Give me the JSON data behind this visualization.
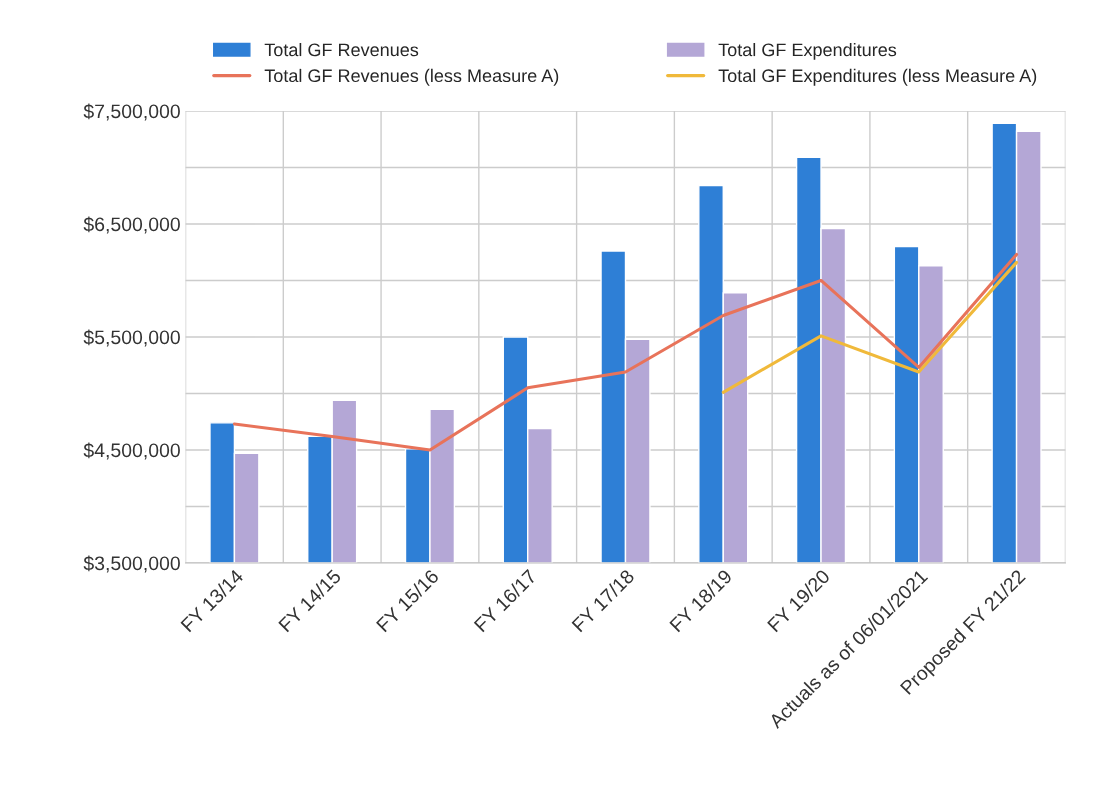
{
  "chart_data": {
    "type": "bar",
    "categories": [
      "FY 13/14",
      "FY 14/15",
      "FY 15/16",
      "FY 16/17",
      "FY 17/18",
      "FY 18/19",
      "FY 19/20",
      "Actuals as of 06/01/2021",
      "Proposed FY 21/22"
    ],
    "series": [
      {
        "name": "Total GF Revenues",
        "color": "#2e7fd6",
        "values": [
          4740000,
          4620000,
          4510000,
          5500000,
          6260000,
          6840000,
          7090000,
          6300000,
          7390000
        ]
      },
      {
        "name": "Total GF Expenditures",
        "color": "#b4a7d6",
        "values": [
          4470000,
          4940000,
          4860000,
          4690000,
          5480000,
          5890000,
          6460000,
          6130000,
          7320000
        ]
      },
      {
        "name": "Total GF Revenues (less Measure A)",
        "type": "line",
        "color": "#e8735a",
        "values": [
          4730000,
          4620000,
          4500000,
          5050000,
          5190000,
          5690000,
          6000000,
          5230000,
          6230000
        ]
      },
      {
        "name": "Total GF Expenditures (less Measure A)",
        "type": "line",
        "color": "#f0b93a",
        "values": [
          null,
          null,
          null,
          null,
          null,
          5010000,
          5510000,
          5190000,
          6160000
        ]
      }
    ],
    "ylim": [
      3500000,
      7500000
    ],
    "yticks": [
      {
        "value": 3500000,
        "label": "$3,500,000"
      },
      {
        "value": 4000000,
        "label": null
      },
      {
        "value": 4500000,
        "label": "$4,500,000"
      },
      {
        "value": 5000000,
        "label": null
      },
      {
        "value": 5500000,
        "label": "$5,500,000"
      },
      {
        "value": 6000000,
        "label": null
      },
      {
        "value": 6500000,
        "label": "$6,500,000"
      },
      {
        "value": 7000000,
        "label": null
      },
      {
        "value": 7500000,
        "label": "$7,500,000"
      }
    ],
    "grid": true,
    "legend": "top"
  }
}
